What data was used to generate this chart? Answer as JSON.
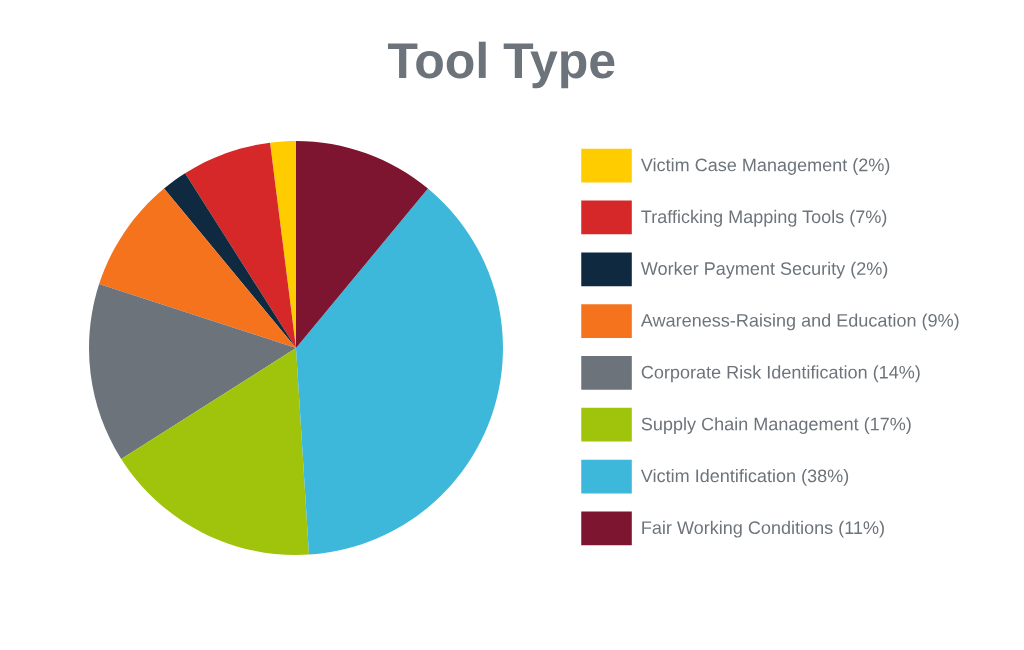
{
  "chart_data": {
    "type": "pie",
    "title": "Tool Type",
    "categories": [
      "Victim Case Management (2%)",
      "Trafficking Mapping Tools (7%)",
      "Worker Payment Security (2%)",
      "Awareness-Raising and Education (9%)",
      "Corporate Risk Identification (14%)",
      "Supply Chain Management (17%)",
      "Victim Identification (38%)",
      "Fair Working Conditions (11%)"
    ],
    "values": [
      2,
      7,
      2,
      9,
      14,
      17,
      38,
      11
    ],
    "colors": [
      "#ffcc00",
      "#d62828",
      "#0f2a40",
      "#f4731c",
      "#6c737a",
      "#a0c40c",
      "#3db8db",
      "#7d1430"
    ],
    "legend": "right"
  }
}
